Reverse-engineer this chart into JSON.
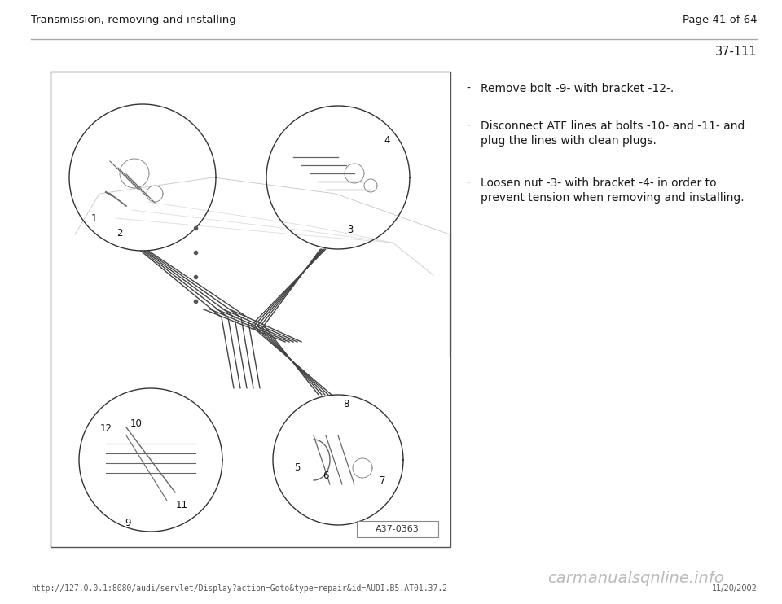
{
  "title_left": "Transmission, removing and installing",
  "title_right": "Page 41 of 64",
  "section_number": "37-111",
  "bg_color": "#ffffff",
  "header_line_color": "#aaaaaa",
  "text_color": "#1a1a1a",
  "header_text_color": "#1a1a1a",
  "bullet_points": [
    {
      "text1": "-",
      "text2": "Remove bolt -9- with bracket -12-."
    },
    {
      "text1": "-",
      "text2": "Disconnect ATF lines at bolts -10- and -11- and\nplug the lines with clean plugs."
    },
    {
      "text1": "-",
      "text2": "Loosen nut -3- with bracket -4- in order to\nprevent tension when removing and installing."
    }
  ],
  "diagram_label": "A37-0363",
  "footer_url": "http://127.0.0.1:8080/audi/servlet/Display?action=Goto&type=repair&id=AUDI.B5.AT01.37.2",
  "footer_date": "11/20/2002",
  "footer_watermark": "carmanualsqnline.info",
  "font_size_header": 9.5,
  "font_size_section": 10.5,
  "font_size_bullets": 10.0,
  "font_size_footer": 7.0,
  "font_size_watermark": 14
}
